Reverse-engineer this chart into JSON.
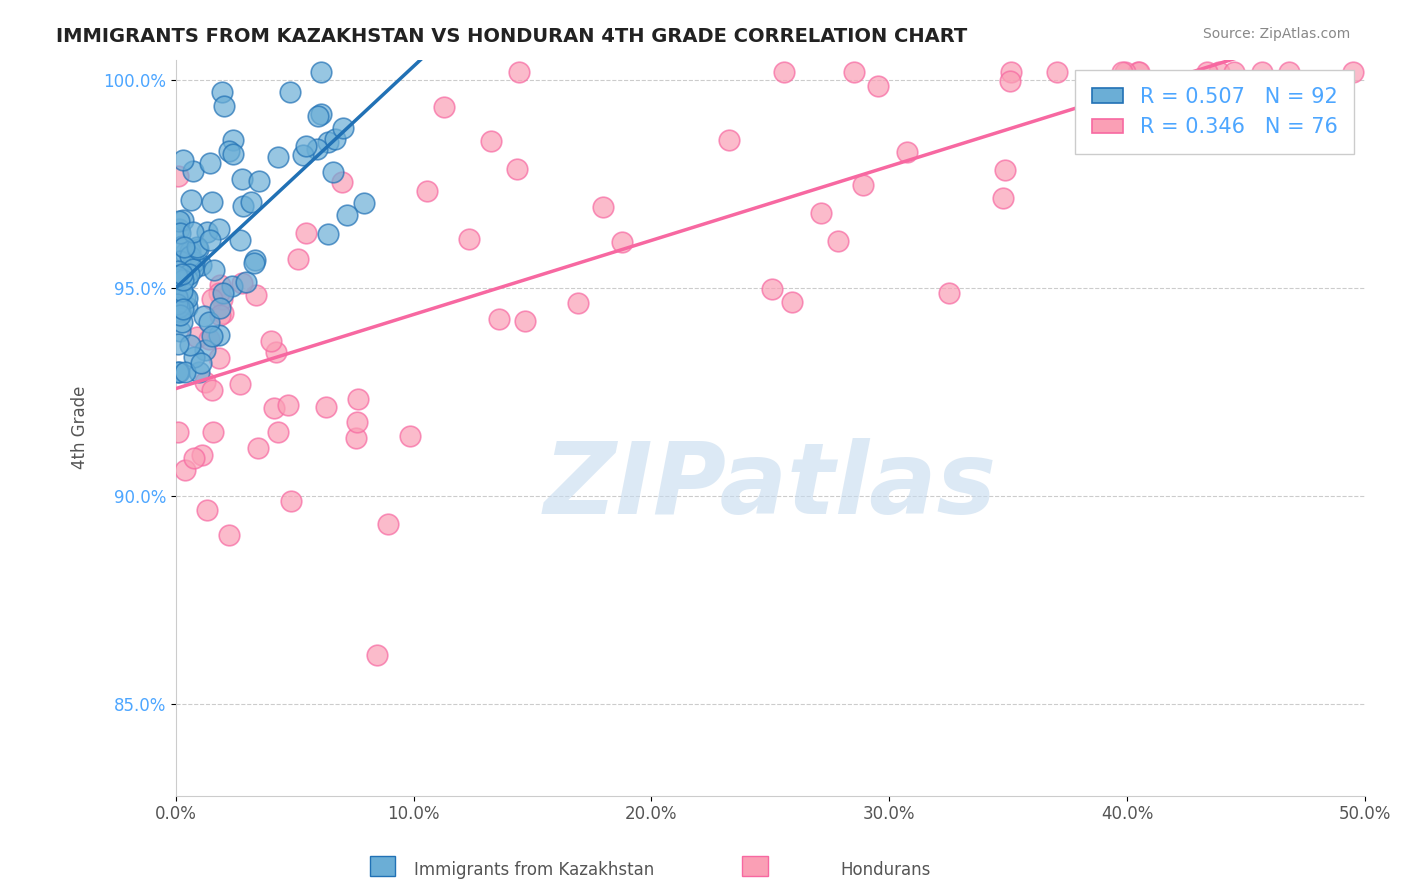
{
  "title": "IMMIGRANTS FROM KAZAKHSTAN VS HONDURAN 4TH GRADE CORRELATION CHART",
  "source": "Source: ZipAtlas.com",
  "ylabel": "4th Grade",
  "legend_label1": "Immigrants from Kazakhstan",
  "legend_label2": "Hondurans",
  "r1": 0.507,
  "n1": 92,
  "r2": 0.346,
  "n2": 76,
  "xlim": [
    0.0,
    0.5
  ],
  "xtick_labels": [
    "0.0%",
    "10.0%",
    "20.0%",
    "30.0%",
    "40.0%",
    "50.0%"
  ],
  "xtick_vals": [
    0.0,
    0.1,
    0.2,
    0.3,
    0.4,
    0.5
  ],
  "ytick_labels": [
    "85.0%",
    "90.0%",
    "95.0%",
    "100.0%"
  ],
  "ytick_vals": [
    0.85,
    0.9,
    0.95,
    1.0
  ],
  "color_blue": "#6baed6",
  "color_blue_dark": "#2171b5",
  "color_pink": "#fa9fb5",
  "color_pink_dark": "#f768a1",
  "watermark": "ZIPatlas",
  "watermark_color": "#c6dbef",
  "background_color": "#ffffff"
}
